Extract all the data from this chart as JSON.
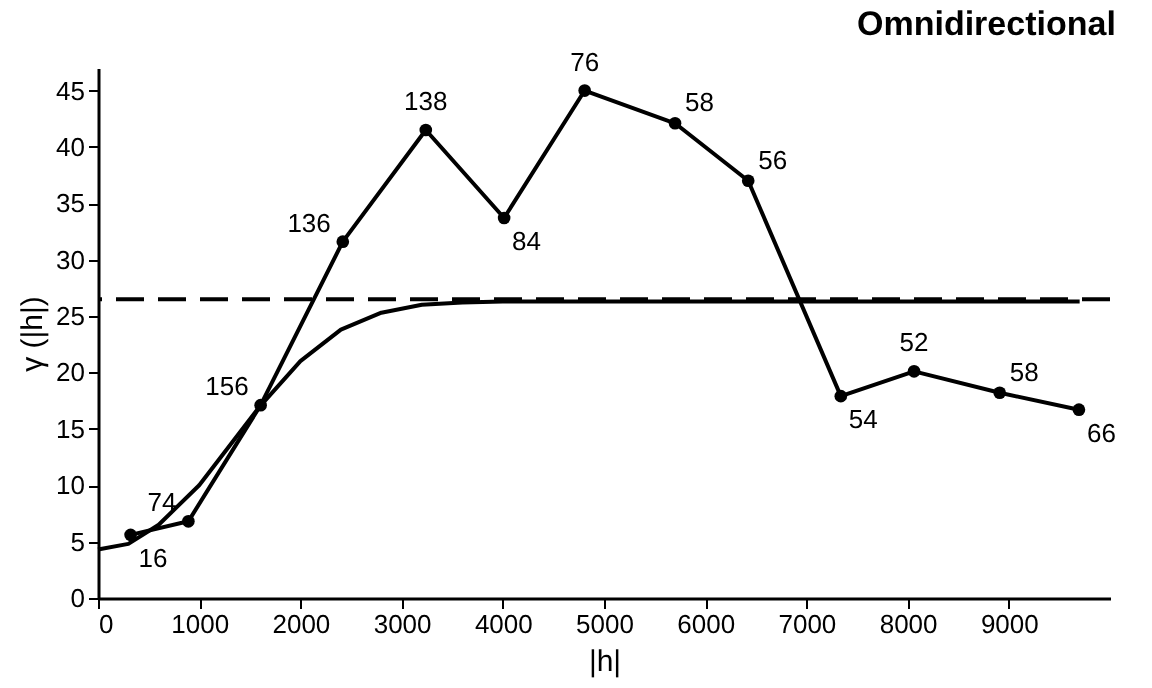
{
  "chart_data": {
    "type": "line",
    "title": "Omnidirectional",
    "xlabel": "|h|",
    "ylabel": "γ (|h|)",
    "xlim": [
      0,
      10000
    ],
    "ylim": [
      0,
      47
    ],
    "xticks": [
      0,
      1000,
      2000,
      3000,
      4000,
      5000,
      6000,
      7000,
      8000,
      9000
    ],
    "yticks": [
      0,
      5,
      10,
      15,
      20,
      25,
      30,
      35,
      40,
      45
    ],
    "grid": false,
    "line_style": "solid",
    "series": [
      {
        "color": "#000000",
        "marker": "circle",
        "x": [
          322,
          893,
          1607,
          2419,
          3239,
          4013,
          4809,
          5702,
          6425,
          7340,
          8064,
          8910,
          9693
        ],
        "values": [
          5.6,
          6.8,
          17.1,
          31.6,
          41.5,
          33.7,
          45,
          42.1,
          37.0,
          17.9,
          20.1,
          18.2,
          16.7
        ]
      },
      {
        "color": "#000000",
        "marker": "none",
        "x": [
          0,
          300,
          600,
          1000,
          1300,
          1600,
          2000,
          2400,
          2800,
          3200,
          3600,
          4000,
          5000,
          6000,
          7000,
          8000,
          9000,
          9700
        ],
        "values": [
          4.3,
          4.8,
          6.5,
          10,
          13.5,
          17,
          21,
          23.8,
          25.3,
          26,
          26.2,
          26.3,
          26.3,
          26.3,
          26.3,
          26.3,
          26.3,
          26.3
        ]
      }
    ],
    "annotations": [
      {
        "text": "16",
        "x": 322,
        "y": 5.6
      },
      {
        "text": "74",
        "x": 893,
        "y": 6.8
      },
      {
        "text": "156",
        "x": 1607,
        "y": 17.1
      },
      {
        "text": "136",
        "x": 2419,
        "y": 31.6
      },
      {
        "text": "138",
        "x": 3239,
        "y": 41.5
      },
      {
        "text": "84",
        "x": 4013,
        "y": 33.7
      },
      {
        "text": "76",
        "x": 4809,
        "y": 45
      },
      {
        "text": "58",
        "x": 5702,
        "y": 42.1
      },
      {
        "text": "56",
        "x": 6425,
        "y": 37.0
      },
      {
        "text": "54",
        "x": 7340,
        "y": 17.9
      },
      {
        "text": "52",
        "x": 8064,
        "y": 20.1
      },
      {
        "text": "58",
        "x": 8910,
        "y": 18.2
      },
      {
        "text": "66",
        "x": 9693,
        "y": 16.7
      }
    ],
    "ref_lines": [
      {
        "axis": "y",
        "value": 26.5,
        "line_style": "dashed",
        "color": "#000000"
      }
    ]
  }
}
